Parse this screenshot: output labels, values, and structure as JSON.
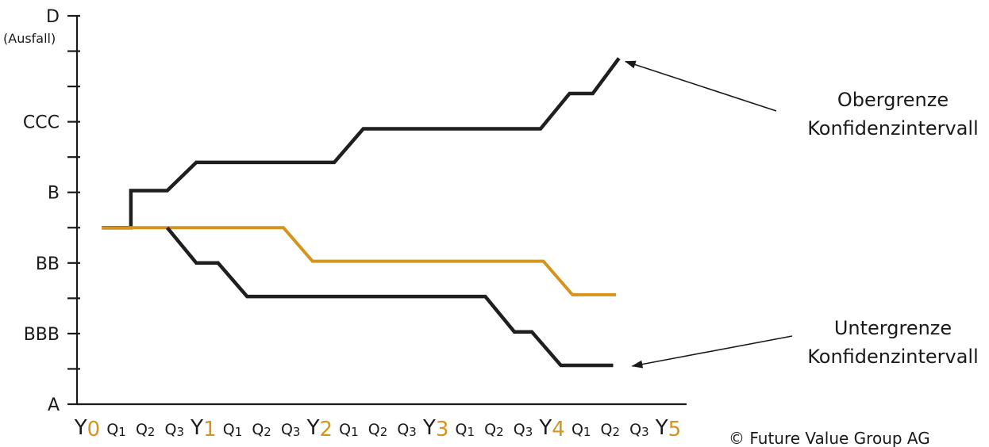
{
  "chart_data": {
    "type": "line",
    "y_ticks": [
      {
        "value": 0,
        "label": "A"
      },
      {
        "value": 1,
        "label": ""
      },
      {
        "value": 2,
        "label": "BBB"
      },
      {
        "value": 3,
        "label": ""
      },
      {
        "value": 4,
        "label": "BB"
      },
      {
        "value": 5,
        "label": ""
      },
      {
        "value": 6,
        "label": "B"
      },
      {
        "value": 7,
        "label": ""
      },
      {
        "value": 8,
        "label": "CCC"
      },
      {
        "value": 9,
        "label": ""
      },
      {
        "value": 10,
        "label": ""
      },
      {
        "value": 11,
        "label": "D"
      }
    ],
    "y_top_note": "(Ausfall)",
    "ylim": [
      0,
      11
    ],
    "x_ticks": [
      {
        "main": "Y",
        "sub": "0",
        "kind": "year"
      },
      {
        "main": "Q1",
        "kind": "quarter"
      },
      {
        "main": "Q2",
        "kind": "quarter"
      },
      {
        "main": "Q3",
        "kind": "quarter"
      },
      {
        "main": "Y",
        "sub": "1",
        "kind": "year"
      },
      {
        "main": "Q1",
        "kind": "quarter"
      },
      {
        "main": "Q2",
        "kind": "quarter"
      },
      {
        "main": "Q3",
        "kind": "quarter"
      },
      {
        "main": "Y",
        "sub": "2",
        "kind": "year"
      },
      {
        "main": "Q1",
        "kind": "quarter"
      },
      {
        "main": "Q2",
        "kind": "quarter"
      },
      {
        "main": "Q3",
        "kind": "quarter"
      },
      {
        "main": "Y",
        "sub": "3",
        "kind": "year"
      },
      {
        "main": "Q1",
        "kind": "quarter"
      },
      {
        "main": "Q2",
        "kind": "quarter"
      },
      {
        "main": "Q3",
        "kind": "quarter"
      },
      {
        "main": "Y",
        "sub": "4",
        "kind": "year"
      },
      {
        "main": "Q1",
        "kind": "quarter"
      },
      {
        "main": "Q2",
        "kind": "quarter"
      },
      {
        "main": "Q3",
        "kind": "quarter"
      },
      {
        "main": "Y",
        "sub": "5",
        "kind": "year"
      }
    ],
    "xlim": [
      0,
      20
    ],
    "grid": false,
    "series": [
      {
        "role": "upper",
        "color": "#1f1f1f",
        "points": [
          [
            0.5,
            5
          ],
          [
            1.5,
            5
          ],
          [
            1.5,
            6.05
          ],
          [
            2.75,
            6.05
          ],
          [
            3.75,
            6.85
          ],
          [
            8.5,
            6.85
          ],
          [
            9.5,
            7.8
          ],
          [
            15.6,
            7.8
          ],
          [
            16.6,
            8.8
          ],
          [
            17.4,
            8.8
          ],
          [
            18.3,
            9.8
          ]
        ]
      },
      {
        "role": "rating",
        "color": "#d4941e",
        "points": [
          [
            0.5,
            5
          ],
          [
            6.75,
            5
          ],
          [
            7.75,
            4.05
          ],
          [
            15.7,
            4.05
          ],
          [
            16.7,
            3.1
          ],
          [
            18.2,
            3.1
          ]
        ]
      },
      {
        "role": "lower",
        "color": "#1f1f1f",
        "points": [
          [
            2.75,
            5
          ],
          [
            3.75,
            4.0
          ],
          [
            4.5,
            4.0
          ],
          [
            5.5,
            3.05
          ],
          [
            13.7,
            3.05
          ],
          [
            14.7,
            2.05
          ],
          [
            15.3,
            2.05
          ],
          [
            16.3,
            1.1
          ],
          [
            18.1,
            1.1
          ]
        ]
      }
    ],
    "annotations": [
      {
        "lines": [
          "Obergrenze",
          "Konfidenzintervall"
        ],
        "target": [
          18.3,
          9.8
        ]
      },
      {
        "lines": [
          "Untergrenze",
          "Konfidenzintervall"
        ],
        "target": [
          18.1,
          1.1
        ]
      }
    ]
  },
  "colors": {
    "axis": "#1a1a1a",
    "accent": "#d4941e"
  },
  "copyright": "© Future Value Group AG"
}
